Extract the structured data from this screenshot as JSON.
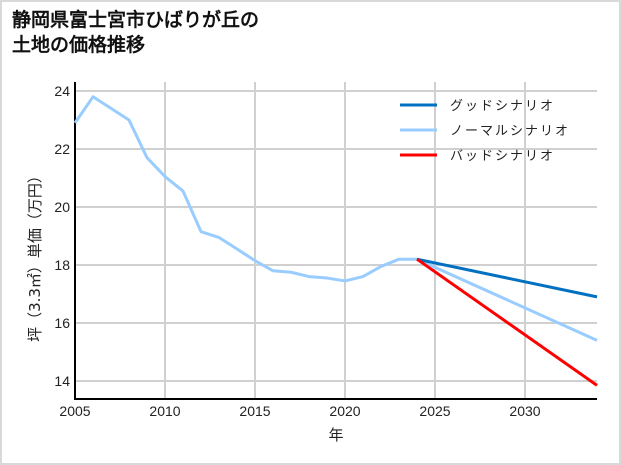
{
  "title_line1": "静岡県富士宮市ひばりが丘の",
  "title_line2": "土地の価格推移",
  "chart_data": {
    "type": "line",
    "title": "静岡県富士宮市ひばりが丘の土地の価格推移",
    "xlabel": "年",
    "ylabel": "坪（3.3㎡）単価（万円）",
    "xlim": [
      2005,
      2034
    ],
    "ylim": [
      13.4,
      24.2
    ],
    "xticks": [
      2005,
      2010,
      2015,
      2020,
      2025,
      2030
    ],
    "yticks": [
      14,
      16,
      18,
      20,
      22,
      24
    ],
    "grid": true,
    "legend_position": "upper right",
    "series": [
      {
        "name": "ノーマルシナリオ",
        "color": "#99ccff",
        "x": [
          2005,
          2006,
          2007,
          2008,
          2009,
          2010,
          2011,
          2012,
          2013,
          2014,
          2015,
          2016,
          2017,
          2018,
          2019,
          2020,
          2021,
          2022,
          2023,
          2024,
          2034
        ],
        "values": [
          22.9,
          23.8,
          23.4,
          23.0,
          21.7,
          21.05,
          20.55,
          19.15,
          18.95,
          18.55,
          18.15,
          17.8,
          17.75,
          17.6,
          17.55,
          17.45,
          17.6,
          17.95,
          18.2,
          18.2,
          15.4
        ]
      },
      {
        "name": "グッドシナリオ",
        "color": "#0070c0",
        "x": [
          2024,
          2034
        ],
        "values": [
          18.2,
          16.9
        ]
      },
      {
        "name": "バッドシナリオ",
        "color": "#ff0000",
        "x": [
          2024,
          2034
        ],
        "values": [
          18.2,
          13.85
        ]
      }
    ]
  }
}
